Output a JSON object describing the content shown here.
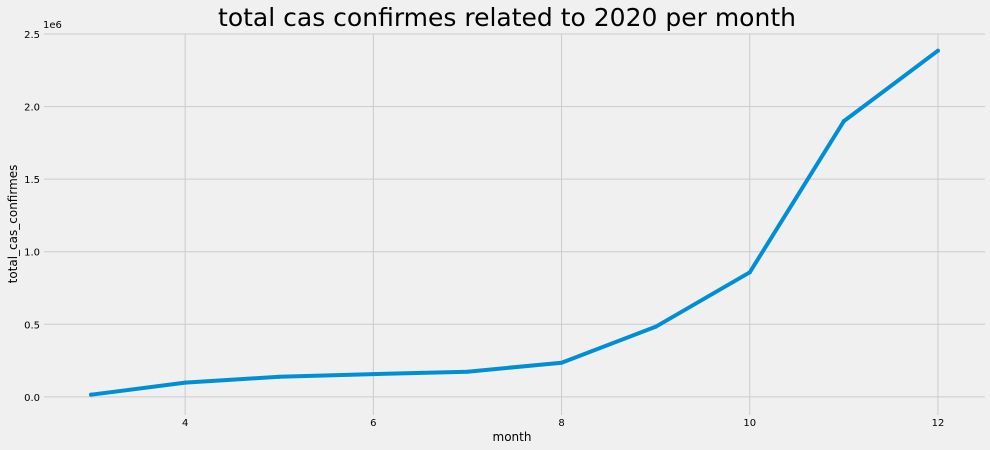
{
  "chart_data": {
    "type": "line",
    "title": "total cas confirmes related to 2020 per month",
    "xlabel": "month",
    "ylabel": "total_cas_confirmes",
    "y_offset_label": "1e6",
    "x": [
      3,
      4,
      5,
      6,
      7,
      8,
      9,
      10,
      11,
      12
    ],
    "series": [
      {
        "values": [
          15000,
          98000,
          138000,
          157000,
          173000,
          235000,
          483000,
          858000,
          1900000,
          2385000
        ],
        "color": "#008fd5"
      }
    ],
    "xlim": [
      2.5,
      12.5
    ],
    "ylim": [
      -125000,
      2500000
    ],
    "x_ticks": [
      4,
      6,
      8,
      10,
      12
    ],
    "x_tick_labels": [
      "4",
      "6",
      "8",
      "10",
      "12"
    ],
    "y_ticks": [
      0,
      500000,
      1000000,
      1500000,
      2000000,
      2500000
    ],
    "y_tick_labels": [
      "0.0",
      "0.5",
      "1.0",
      "1.5",
      "2.0",
      "2.5"
    ],
    "grid": true,
    "background_color": "#f0f0f0"
  }
}
